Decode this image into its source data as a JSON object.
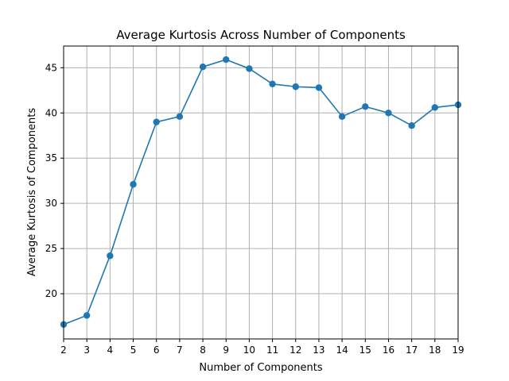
{
  "chart_data": {
    "type": "line",
    "title": "Average Kurtosis Across Number of Components",
    "xlabel": "Number of Components",
    "ylabel": "Average Kurtosis of Components",
    "x": [
      2,
      3,
      4,
      5,
      6,
      7,
      8,
      9,
      10,
      11,
      12,
      13,
      14,
      15,
      16,
      17,
      18,
      19
    ],
    "series": [
      {
        "values": [
          16.6,
          17.6,
          24.2,
          32.1,
          39.0,
          39.6,
          45.1,
          45.9,
          44.9,
          43.2,
          42.9,
          42.8,
          39.6,
          40.7,
          40.0,
          38.6,
          40.6,
          40.9
        ],
        "color": "#1f77b4",
        "marker": "circle"
      }
    ],
    "xlim": [
      2,
      19
    ],
    "ylim": [
      15.0,
      47.4
    ],
    "xticks": [
      "2",
      "3",
      "4",
      "5",
      "6",
      "7",
      "8",
      "9",
      "10",
      "11",
      "12",
      "13",
      "14",
      "15",
      "16",
      "17",
      "18",
      "19"
    ],
    "yticks": [
      20,
      25,
      30,
      35,
      40,
      45
    ],
    "ytick_labels": [
      "20",
      "25",
      "30",
      "35",
      "40",
      "45"
    ],
    "grid": true,
    "legend": "none"
  }
}
